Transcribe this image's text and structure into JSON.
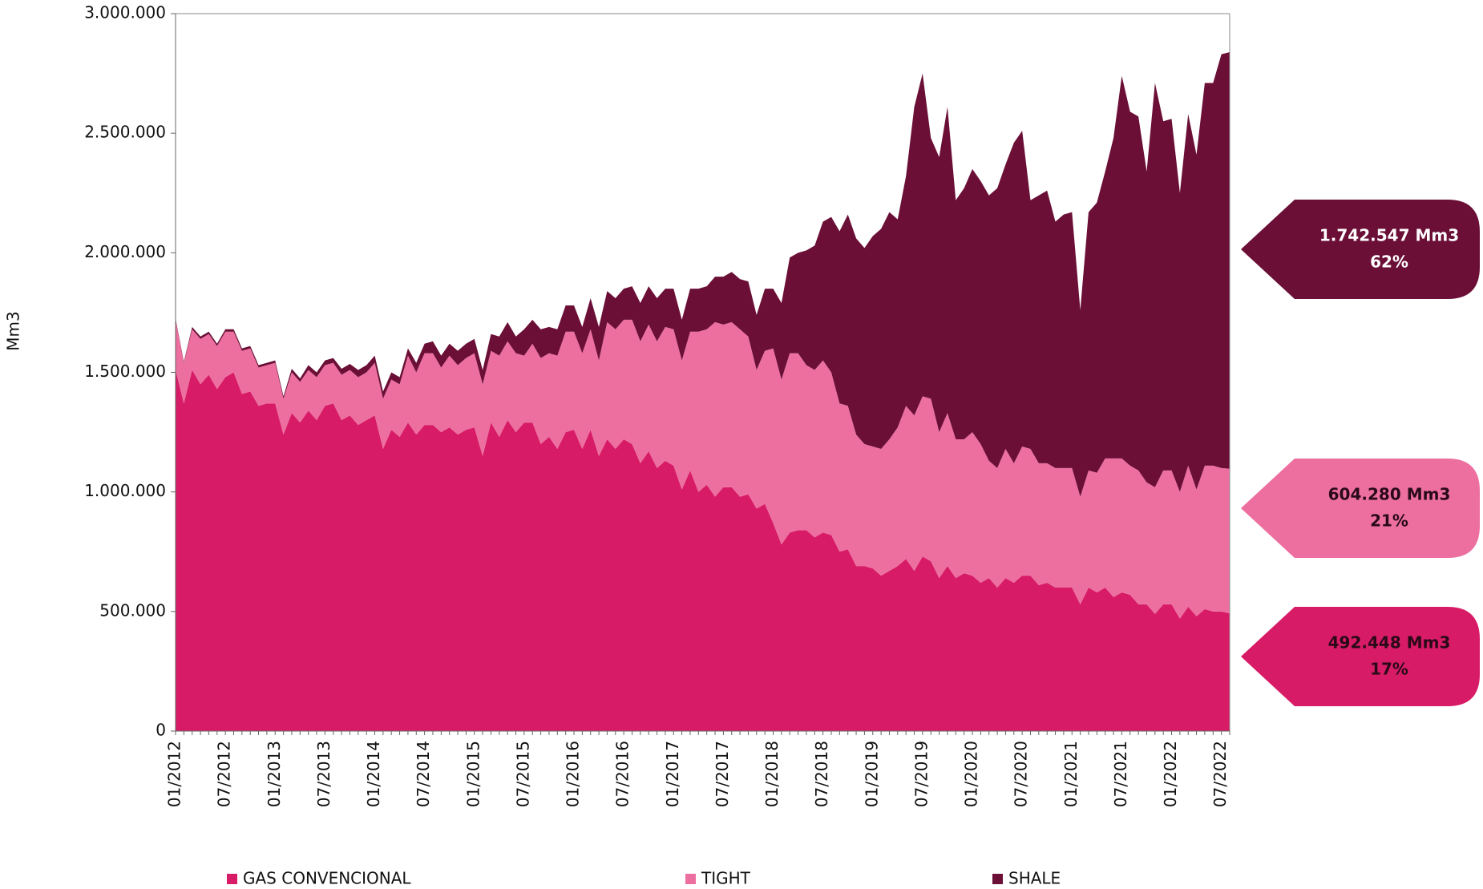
{
  "chart_data": {
    "type": "stacked-area",
    "y_label": "Mm3",
    "categories": [
      "01/2012",
      null,
      null,
      null,
      null,
      null,
      "07/2012",
      null,
      null,
      null,
      null,
      null,
      "01/2013",
      null,
      null,
      null,
      null,
      null,
      "07/2013",
      null,
      null,
      null,
      null,
      null,
      "01/2014",
      null,
      null,
      null,
      null,
      null,
      "07/2014",
      null,
      null,
      null,
      null,
      null,
      "01/2015",
      null,
      null,
      null,
      null,
      null,
      "07/2015",
      null,
      null,
      null,
      null,
      null,
      "01/2016",
      null,
      null,
      null,
      null,
      null,
      "07/2016",
      null,
      null,
      null,
      null,
      null,
      "01/2017",
      null,
      null,
      null,
      null,
      null,
      "07/2017",
      null,
      null,
      null,
      null,
      null,
      "01/2018",
      null,
      null,
      null,
      null,
      null,
      "07/2018",
      null,
      null,
      null,
      null,
      null,
      "01/2019",
      null,
      null,
      null,
      null,
      null,
      "07/2019",
      null,
      null,
      null,
      null,
      null,
      "01/2020",
      null,
      null,
      null,
      null,
      null,
      "07/2020",
      null,
      null,
      null,
      null,
      null,
      "01/2021",
      null,
      null,
      null,
      null,
      null,
      "07/2021",
      null,
      null,
      null,
      null,
      null,
      "01/2022",
      null,
      null,
      null,
      null,
      null,
      "07/2022",
      null
    ],
    "series": [
      {
        "name": "GAS CONVENCIONAL",
        "color": "#d81b66",
        "values": [
          1510000,
          1370000,
          1510000,
          1450000,
          1490000,
          1430000,
          1480000,
          1500000,
          1410000,
          1420000,
          1360000,
          1370000,
          1370000,
          1240000,
          1330000,
          1290000,
          1340000,
          1300000,
          1360000,
          1370000,
          1300000,
          1320000,
          1280000,
          1300000,
          1320000,
          1180000,
          1260000,
          1230000,
          1290000,
          1240000,
          1280000,
          1280000,
          1250000,
          1270000,
          1240000,
          1260000,
          1270000,
          1150000,
          1290000,
          1230000,
          1300000,
          1250000,
          1290000,
          1290000,
          1200000,
          1230000,
          1180000,
          1250000,
          1260000,
          1180000,
          1260000,
          1150000,
          1220000,
          1180000,
          1220000,
          1200000,
          1120000,
          1170000,
          1100000,
          1130000,
          1110000,
          1010000,
          1090000,
          1000000,
          1030000,
          980000,
          1020000,
          1020000,
          980000,
          990000,
          930000,
          950000,
          870000,
          780000,
          830000,
          840000,
          840000,
          810000,
          830000,
          820000,
          750000,
          760000,
          690000,
          690000,
          680000,
          650000,
          670000,
          690000,
          720000,
          670000,
          730000,
          710000,
          640000,
          690000,
          640000,
          660000,
          650000,
          620000,
          640000,
          600000,
          640000,
          620000,
          650000,
          650000,
          610000,
          620000,
          600000,
          600000,
          600000,
          530000,
          600000,
          580000,
          600000,
          560000,
          580000,
          570000,
          530000,
          530000,
          490000,
          530000,
          530000,
          470000,
          520000,
          480000,
          510000,
          500000,
          500000,
          492448
        ]
      },
      {
        "name": "TIGHT",
        "color": "#ec6fa0",
        "values": [
          210000,
          170000,
          170000,
          190000,
          170000,
          180000,
          190000,
          170000,
          180000,
          180000,
          160000,
          160000,
          170000,
          150000,
          170000,
          170000,
          170000,
          180000,
          170000,
          170000,
          190000,
          190000,
          200000,
          200000,
          220000,
          210000,
          210000,
          220000,
          280000,
          260000,
          300000,
          300000,
          270000,
          300000,
          290000,
          300000,
          310000,
          300000,
          300000,
          340000,
          330000,
          330000,
          280000,
          330000,
          360000,
          350000,
          390000,
          420000,
          410000,
          400000,
          420000,
          400000,
          490000,
          500000,
          500000,
          520000,
          510000,
          530000,
          530000,
          560000,
          570000,
          540000,
          580000,
          670000,
          650000,
          730000,
          680000,
          690000,
          700000,
          660000,
          580000,
          640000,
          730000,
          690000,
          750000,
          740000,
          690000,
          700000,
          720000,
          680000,
          620000,
          600000,
          550000,
          510000,
          510000,
          530000,
          550000,
          580000,
          640000,
          650000,
          670000,
          680000,
          610000,
          640000,
          580000,
          560000,
          600000,
          580000,
          490000,
          500000,
          540000,
          500000,
          540000,
          530000,
          510000,
          500000,
          500000,
          500000,
          500000,
          450000,
          490000,
          500000,
          540000,
          580000,
          560000,
          540000,
          560000,
          510000,
          530000,
          560000,
          560000,
          530000,
          590000,
          530000,
          600000,
          610000,
          600000,
          604280
        ]
      },
      {
        "name": "SHALE",
        "color": "#6b0f37",
        "values": [
          5000,
          5000,
          10000,
          10000,
          10000,
          10000,
          10000,
          10000,
          10000,
          10000,
          10000,
          10000,
          10000,
          10000,
          15000,
          15000,
          20000,
          20000,
          20000,
          20000,
          25000,
          25000,
          30000,
          30000,
          30000,
          30000,
          30000,
          30000,
          30000,
          40000,
          40000,
          50000,
          50000,
          50000,
          60000,
          60000,
          60000,
          60000,
          70000,
          80000,
          80000,
          70000,
          110000,
          100000,
          120000,
          110000,
          110000,
          110000,
          110000,
          110000,
          130000,
          140000,
          130000,
          130000,
          130000,
          140000,
          160000,
          160000,
          180000,
          160000,
          170000,
          170000,
          180000,
          180000,
          180000,
          190000,
          200000,
          210000,
          210000,
          230000,
          230000,
          260000,
          250000,
          320000,
          400000,
          420000,
          480000,
          520000,
          580000,
          650000,
          720000,
          800000,
          820000,
          820000,
          880000,
          920000,
          950000,
          870000,
          960000,
          1290000,
          1350000,
          1090000,
          1150000,
          1280000,
          1000000,
          1050000,
          1100000,
          1100000,
          1110000,
          1170000,
          1190000,
          1340000,
          1320000,
          1040000,
          1120000,
          1140000,
          1030000,
          1060000,
          1070000,
          780000,
          1080000,
          1130000,
          1200000,
          1340000,
          1600000,
          1480000,
          1480000,
          1300000,
          1690000,
          1460000,
          1470000,
          1250000,
          1470000,
          1400000,
          1600000,
          1600000,
          1730000,
          1742547
        ]
      }
    ],
    "ylim": [
      0,
      3000000
    ],
    "yticks": [
      0,
      {
        "value": 500000,
        "label": "500.000"
      },
      {
        "value": 1000000,
        "label": "1.000.000"
      },
      {
        "value": 1500000,
        "label": "1.500.000"
      },
      {
        "value": 2000000,
        "label": "2.000.000"
      },
      {
        "value": 2500000,
        "label": "2.500.000"
      },
      {
        "value": 3000000,
        "label": "3.000.000"
      }
    ],
    "annotations": [
      {
        "series": 2,
        "value": 1742547,
        "label": "1.742.547 Mm3",
        "share": {
          "value": 62,
          "label": "62%"
        }
      },
      {
        "series": 1,
        "value": 604280,
        "label": "604.280 Mm3",
        "share": {
          "value": 21,
          "label": "21%"
        }
      },
      {
        "series": 0,
        "value": 492448,
        "label": "492.448 Mm3",
        "share": {
          "value": 17,
          "label": "17%"
        }
      }
    ]
  }
}
